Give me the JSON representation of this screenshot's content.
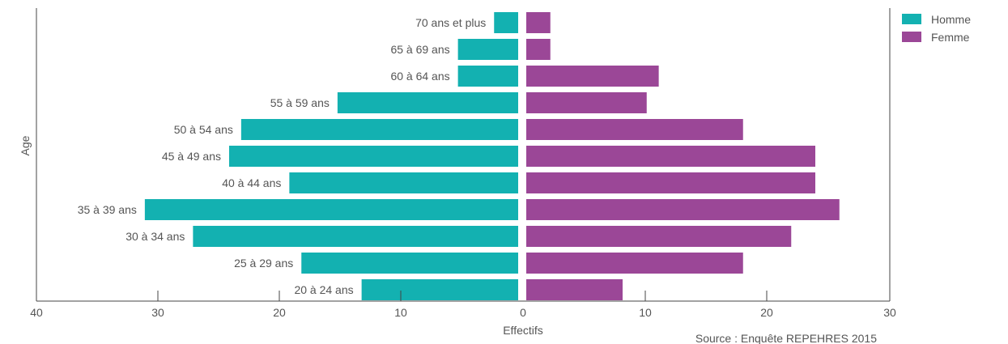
{
  "chart_data": {
    "type": "bar",
    "orientation": "horizontal",
    "layout": "population-pyramid",
    "categories": [
      "70 ans et plus",
      "65 à 69 ans",
      "60 à 64 ans",
      "55 à 59 ans",
      "50 à 54 ans",
      "45 à 49 ans",
      "40 à 44 ans",
      "35 à 39 ans",
      "30 à 34 ans",
      "25 à 29 ans",
      "20 à 24 ans"
    ],
    "series": [
      {
        "name": "Homme",
        "color": "#13b1b1",
        "side": "left",
        "values": [
          2,
          5,
          5,
          15,
          23,
          24,
          19,
          31,
          27,
          18,
          13
        ]
      },
      {
        "name": "Femme",
        "color": "#9b4797",
        "side": "right",
        "values": [
          2,
          2,
          11,
          10,
          18,
          24,
          24,
          26,
          22,
          18,
          8
        ]
      }
    ],
    "xticks": [
      "40",
      "30",
      "20",
      "10",
      "0",
      "10",
      "20",
      "30"
    ],
    "xlim_left": [
      0,
      40
    ],
    "xlim_right": [
      0,
      30
    ],
    "xlabel": "Effectifs",
    "ylabel": "Age",
    "legend": "top-right",
    "grid": false,
    "source": "Source : Enquête REPEHRES 2015"
  }
}
